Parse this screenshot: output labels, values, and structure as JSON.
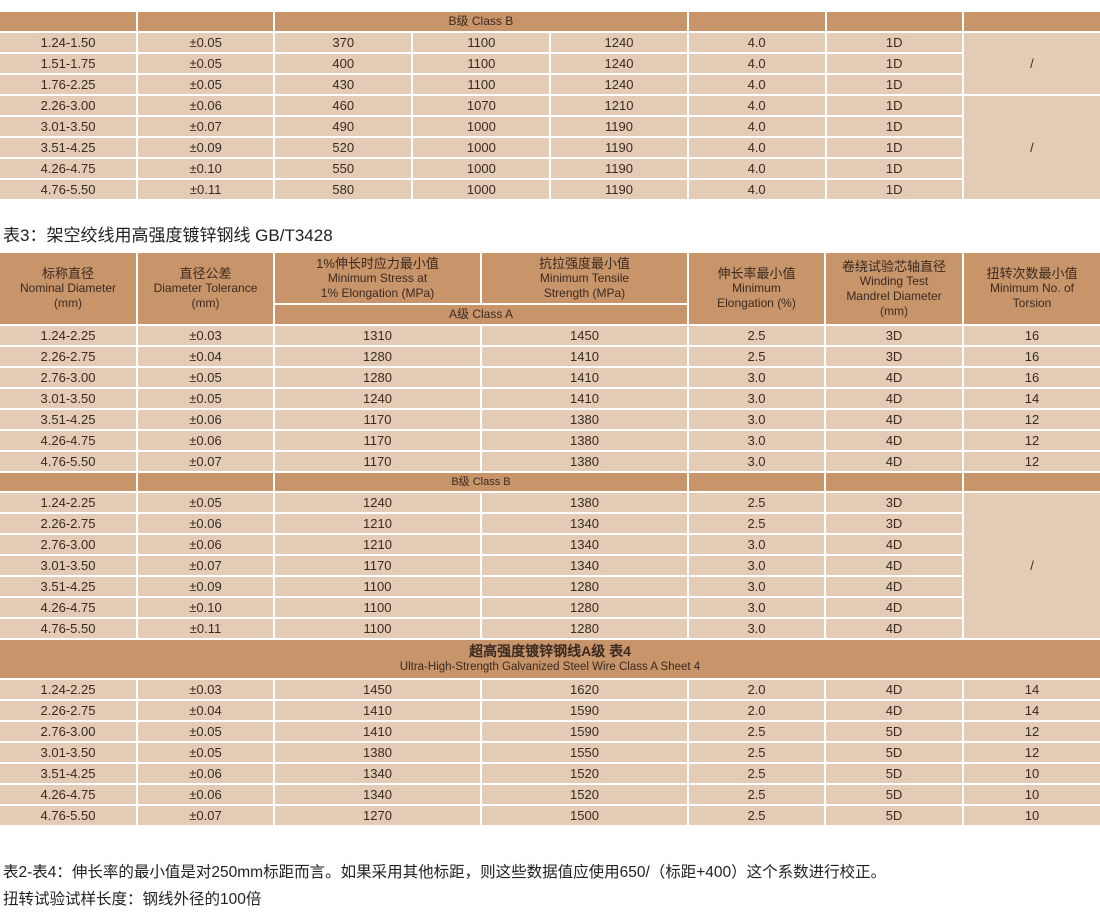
{
  "top_table": {
    "class_label": "B级 Class B",
    "rows": [
      [
        "1.24-1.50",
        "±0.05",
        "370",
        "1100",
        "1240",
        "4.0",
        "1D"
      ],
      [
        "1.51-1.75",
        "±0.05",
        "400",
        "1100",
        "1240",
        "4.0",
        "1D"
      ],
      [
        "1.76-2.25",
        "±0.05",
        "430",
        "1100",
        "1240",
        "4.0",
        "1D"
      ],
      [
        "2.26-3.00",
        "±0.06",
        "460",
        "1070",
        "1210",
        "4.0",
        "1D"
      ],
      [
        "3.01-3.50",
        "±0.07",
        "490",
        "1000",
        "1190",
        "4.0",
        "1D"
      ],
      [
        "3.51-4.25",
        "±0.09",
        "520",
        "1000",
        "1190",
        "4.0",
        "1D"
      ],
      [
        "4.26-4.75",
        "±0.10",
        "550",
        "1000",
        "1190",
        "4.0",
        "1D"
      ],
      [
        "4.76-5.50",
        "±0.11",
        "580",
        "1000",
        "1190",
        "4.0",
        "1D"
      ]
    ],
    "torsion_merged": [
      "/",
      "/"
    ]
  },
  "table3": {
    "title": "表3：架空绞线用高强度镀锌钢线 GB/T3428",
    "headers": [
      {
        "zh": "标称直径",
        "en": "Nominal Diameter",
        "unit": "(mm)"
      },
      {
        "zh": "直径公差",
        "en": "Diameter Tolerance",
        "unit": "(mm)"
      },
      {
        "zh": "1%伸长时应力最小值",
        "en": "Minimum Stress at",
        "unit": "1% Elongation (MPa)"
      },
      {
        "zh": "抗拉强度最小值",
        "en": "Minimum Tensile",
        "unit": "Strength (MPa)"
      },
      {
        "zh": "伸长率最小值",
        "en": "Minimum",
        "unit": "Elongation (%)"
      },
      {
        "zh": "卷绕试验芯轴直径",
        "en": "Winding Test",
        "en2": "Mandrel Diameter",
        "unit": "(mm)"
      },
      {
        "zh": "扭转次数最小值",
        "en": "Minimum No. of",
        "unit": "Torsion"
      }
    ],
    "class_a_label": "A级 Class A",
    "class_a_rows": [
      [
        "1.24-2.25",
        "±0.03",
        "1310",
        "1450",
        "2.5",
        "3D",
        "16"
      ],
      [
        "2.26-2.75",
        "±0.04",
        "1280",
        "1410",
        "2.5",
        "3D",
        "16"
      ],
      [
        "2.76-3.00",
        "±0.05",
        "1280",
        "1410",
        "3.0",
        "4D",
        "16"
      ],
      [
        "3.01-3.50",
        "±0.05",
        "1240",
        "1410",
        "3.0",
        "4D",
        "14"
      ],
      [
        "3.51-4.25",
        "±0.06",
        "1170",
        "1380",
        "3.0",
        "4D",
        "12"
      ],
      [
        "4.26-4.75",
        "±0.06",
        "1170",
        "1380",
        "3.0",
        "4D",
        "12"
      ],
      [
        "4.76-5.50",
        "±0.07",
        "1170",
        "1380",
        "3.0",
        "4D",
        "12"
      ]
    ],
    "class_b_label": "B级  Class B",
    "class_b_rows": [
      [
        "1.24-2.25",
        "±0.05",
        "1240",
        "1380",
        "2.5",
        "3D"
      ],
      [
        "2.26-2.75",
        "±0.06",
        "1210",
        "1340",
        "2.5",
        "3D"
      ],
      [
        "2.76-3.00",
        "±0.06",
        "1210",
        "1340",
        "3.0",
        "4D"
      ],
      [
        "3.01-3.50",
        "±0.07",
        "1170",
        "1340",
        "3.0",
        "4D"
      ],
      [
        "3.51-4.25",
        "±0.09",
        "1100",
        "1280",
        "3.0",
        "4D"
      ],
      [
        "4.26-4.75",
        "±0.10",
        "1100",
        "1280",
        "3.0",
        "4D"
      ],
      [
        "4.76-5.50",
        "±0.11",
        "1100",
        "1280",
        "3.0",
        "4D"
      ]
    ],
    "class_b_torsion": "/"
  },
  "table4": {
    "title_zh": "超高强度镀锌钢线A级 表4",
    "title_en": "Ultra-High-Strength Galvanized Steel Wire Class A  Sheet 4",
    "rows": [
      [
        "1.24-2.25",
        "±0.03",
        "1450",
        "1620",
        "2.0",
        "4D",
        "14"
      ],
      [
        "2.26-2.75",
        "±0.04",
        "1410",
        "1590",
        "2.0",
        "4D",
        "14"
      ],
      [
        "2.76-3.00",
        "±0.05",
        "1410",
        "1590",
        "2.5",
        "5D",
        "12"
      ],
      [
        "3.01-3.50",
        "±0.05",
        "1380",
        "1550",
        "2.5",
        "5D",
        "12"
      ],
      [
        "3.51-4.25",
        "±0.06",
        "1340",
        "1520",
        "2.5",
        "5D",
        "10"
      ],
      [
        "4.26-4.75",
        "±0.06",
        "1340",
        "1520",
        "2.5",
        "5D",
        "10"
      ],
      [
        "4.76-5.50",
        "±0.07",
        "1270",
        "1500",
        "2.5",
        "5D",
        "10"
      ]
    ]
  },
  "notes": [
    "表2-表4：伸长率的最小值是对250mm标距而言。如果采用其他标距，则这些数据值应使用650/（标距+400）这个系数进行校正。",
    "扭转试验试样长度：钢线外径的100倍"
  ]
}
